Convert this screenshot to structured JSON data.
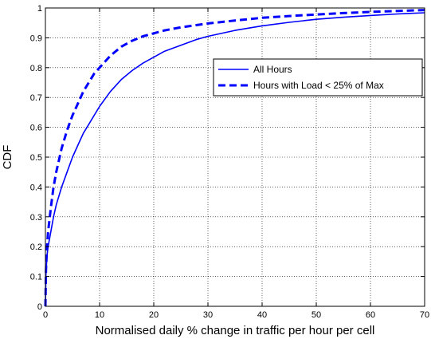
{
  "chart_data": {
    "type": "line",
    "xlabel": "Normalised daily % change in traffic per hour per cell",
    "ylabel": "CDF",
    "xlim": [
      0,
      70
    ],
    "ylim": [
      0,
      1
    ],
    "xticks": [
      "0",
      "10",
      "20",
      "30",
      "40",
      "50",
      "60",
      "70"
    ],
    "yticks": [
      "0",
      "0.1",
      "0.2",
      "0.3",
      "0.4",
      "0.5",
      "0.6",
      "0.7",
      "0.8",
      "0.9",
      "1"
    ],
    "grid": true,
    "legend_position": "upper-right",
    "series": [
      {
        "name": "All Hours",
        "style": "solid",
        "color": "#0000ff",
        "x": [
          0,
          0.1,
          0.3,
          0.5,
          1,
          1.5,
          2,
          3,
          4,
          5,
          6,
          7,
          8,
          9,
          10,
          12,
          14,
          16,
          18,
          20,
          22,
          25,
          28,
          30,
          35,
          40,
          45,
          50,
          55,
          60,
          65,
          70
        ],
        "y": [
          0,
          0.11,
          0.17,
          0.2,
          0.25,
          0.3,
          0.34,
          0.4,
          0.45,
          0.5,
          0.54,
          0.58,
          0.61,
          0.64,
          0.67,
          0.72,
          0.76,
          0.79,
          0.815,
          0.835,
          0.855,
          0.875,
          0.895,
          0.905,
          0.925,
          0.94,
          0.952,
          0.962,
          0.969,
          0.975,
          0.98,
          0.984
        ]
      },
      {
        "name": "Hours with Load < 25% of Max",
        "style": "dashed",
        "color": "#0000ff",
        "x": [
          0,
          0.1,
          0.3,
          0.5,
          1,
          1.5,
          2,
          3,
          4,
          5,
          6,
          7,
          8,
          9,
          10,
          12,
          14,
          16,
          18,
          20,
          22,
          25,
          30,
          35,
          40,
          45,
          50,
          55,
          60,
          65,
          70
        ],
        "y": [
          0,
          0.12,
          0.2,
          0.25,
          0.33,
          0.4,
          0.45,
          0.53,
          0.59,
          0.64,
          0.68,
          0.72,
          0.75,
          0.78,
          0.8,
          0.84,
          0.87,
          0.89,
          0.905,
          0.915,
          0.925,
          0.935,
          0.948,
          0.958,
          0.967,
          0.973,
          0.978,
          0.983,
          0.987,
          0.99,
          0.993
        ]
      }
    ]
  }
}
